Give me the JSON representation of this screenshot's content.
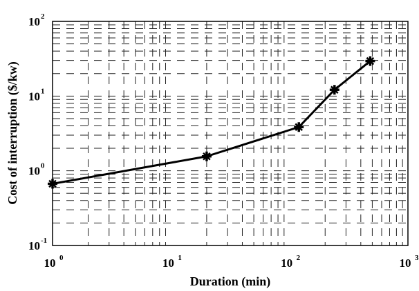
{
  "chart_data": {
    "type": "line",
    "xlabel": "Duration (min)",
    "ylabel": "Cost of interruption ($/kw)",
    "xscale": "log",
    "yscale": "log",
    "xlim": [
      1,
      1000
    ],
    "ylim": [
      0.1,
      100
    ],
    "grid": true,
    "grid_style": "dashed",
    "marker": "cross",
    "line_color": "#000000",
    "x_ticks": [
      {
        "base": "10",
        "exp": "0",
        "value": 1
      },
      {
        "base": "10",
        "exp": "1",
        "value": 10
      },
      {
        "base": "10",
        "exp": "2",
        "value": 100
      },
      {
        "base": "10",
        "exp": "3",
        "value": 1000
      }
    ],
    "y_ticks": [
      {
        "base": "10",
        "exp": "-1",
        "value": 0.1
      },
      {
        "base": "10",
        "exp": "0",
        "value": 1
      },
      {
        "base": "10",
        "exp": "1",
        "value": 10
      },
      {
        "base": "10",
        "exp": "2",
        "value": 100
      }
    ],
    "x": [
      1,
      20,
      120,
      240,
      480
    ],
    "y": [
      0.67,
      1.56,
      3.85,
      12.14,
      29.41
    ]
  }
}
